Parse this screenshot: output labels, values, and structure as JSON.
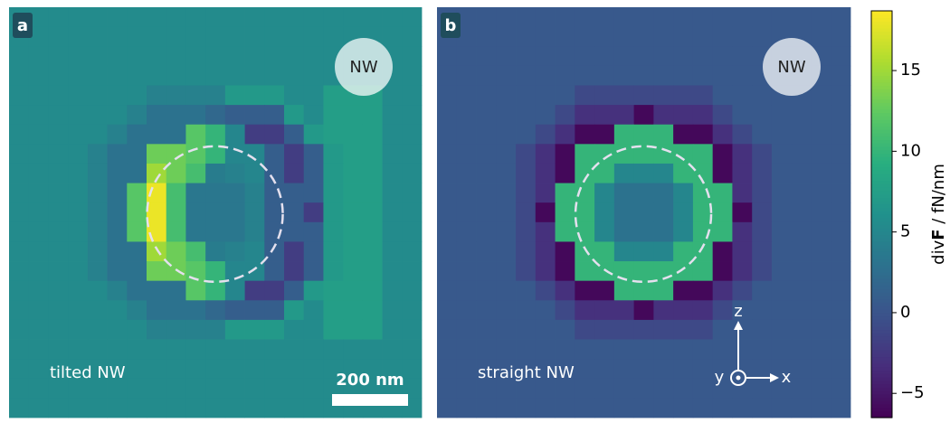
{
  "chart_data": [
    {
      "type": "heatmap",
      "panel_label": "a",
      "marker": "NW",
      "caption": "tilted NW",
      "scale_bar": "200 nm",
      "values": [
        [
          5.5,
          5.5,
          5.5,
          5.5,
          5.5,
          5.5,
          5.5,
          5.5,
          5.5,
          5.5,
          5.5,
          5.5,
          5.5,
          5.5,
          5.5,
          5.5,
          5.5,
          5.5,
          5.5,
          5.5,
          5.5
        ],
        [
          5.5,
          5.5,
          5.5,
          5.5,
          5.5,
          5.5,
          5.5,
          5.5,
          5.5,
          5.5,
          5.5,
          5.5,
          5.5,
          5.5,
          5.5,
          5.5,
          5.5,
          5.5,
          5.5,
          5.5,
          5.5
        ],
        [
          5.5,
          5.5,
          5.5,
          5.5,
          5.5,
          5.5,
          5.5,
          5.5,
          5.5,
          5.5,
          5.5,
          5.5,
          5.5,
          5.5,
          5.5,
          5.5,
          5.5,
          5.5,
          5.5,
          5.5,
          5.5
        ],
        [
          5.5,
          5.5,
          5.5,
          5.5,
          5.5,
          5.5,
          5.5,
          5.5,
          5.5,
          5.5,
          5.5,
          5.5,
          5.5,
          5.5,
          5.5,
          5.5,
          5.5,
          5.5,
          5.5,
          5.5,
          5.5
        ],
        [
          5.5,
          5.5,
          5.5,
          5.5,
          5.5,
          5.5,
          5.5,
          4.5,
          4.5,
          4.5,
          4.5,
          7,
          7,
          7,
          5.5,
          5.5,
          7.5,
          7.5,
          7.5,
          5.5,
          5.5
        ],
        [
          5.5,
          5.5,
          5.5,
          5.5,
          5.5,
          5.5,
          4.5,
          3,
          3,
          3,
          2,
          1,
          1,
          1,
          7,
          5.5,
          7.5,
          7.5,
          7.5,
          5.5,
          5.5
        ],
        [
          5.5,
          5.5,
          5.5,
          5.5,
          5.5,
          4.5,
          3,
          3,
          3,
          12,
          10,
          5,
          -2,
          -2,
          1,
          7,
          7.5,
          7.5,
          7.5,
          5.5,
          5.5
        ],
        [
          5.5,
          5.5,
          5.5,
          5.5,
          4.5,
          3,
          3,
          13,
          13,
          12,
          10,
          5,
          5,
          1,
          -2,
          1,
          7,
          7.5,
          7.5,
          5.5,
          5.5
        ],
        [
          5.5,
          5.5,
          5.5,
          5.5,
          4.5,
          3,
          3,
          15,
          13,
          11,
          4,
          4.5,
          5,
          1,
          -2,
          1,
          7,
          7.5,
          7.5,
          5.5,
          5.5
        ],
        [
          5.5,
          5.5,
          5.5,
          5.5,
          4.5,
          3,
          12,
          18,
          11,
          3.5,
          3.5,
          3.5,
          4.5,
          1,
          1,
          1,
          7,
          7.5,
          7.5,
          5.5,
          5.5
        ],
        [
          5.5,
          5.5,
          5.5,
          5.5,
          4.5,
          3,
          12,
          18,
          11,
          3.5,
          3.5,
          3.5,
          4.5,
          1,
          1,
          -2,
          7,
          7.5,
          7.5,
          5.5,
          5.5
        ],
        [
          5.5,
          5.5,
          5.5,
          5.5,
          4.5,
          3,
          12,
          18,
          11,
          3.5,
          3.5,
          3.5,
          4.5,
          1,
          1,
          1,
          7,
          7.5,
          7.5,
          5.5,
          5.5
        ],
        [
          5.5,
          5.5,
          5.5,
          5.5,
          4.5,
          3,
          3,
          15,
          13,
          11,
          4,
          4.5,
          5,
          1,
          -2,
          1,
          7,
          7.5,
          7.5,
          5.5,
          5.5
        ],
        [
          5.5,
          5.5,
          5.5,
          5.5,
          4.5,
          3,
          3,
          13,
          13,
          12,
          10,
          5,
          5,
          1,
          -2,
          1,
          7,
          7.5,
          7.5,
          5.5,
          5.5
        ],
        [
          5.5,
          5.5,
          5.5,
          5.5,
          5.5,
          4.5,
          3,
          3,
          3,
          12,
          10,
          5,
          -2,
          -2,
          1,
          7,
          7.5,
          7.5,
          7.5,
          5.5,
          5.5
        ],
        [
          5.5,
          5.5,
          5.5,
          5.5,
          5.5,
          5.5,
          4.5,
          3,
          3,
          3,
          2,
          1,
          1,
          1,
          7,
          5.5,
          7.5,
          7.5,
          7.5,
          5.5,
          5.5
        ],
        [
          5.5,
          5.5,
          5.5,
          5.5,
          5.5,
          5.5,
          5.5,
          4.5,
          4.5,
          4.5,
          4.5,
          7,
          7,
          7,
          5.5,
          5.5,
          7.5,
          7.5,
          7.5,
          5.5,
          5.5
        ],
        [
          5.5,
          5.5,
          5.5,
          5.5,
          5.5,
          5.5,
          5.5,
          5.5,
          5.5,
          5.5,
          5.5,
          5.5,
          5.5,
          5.5,
          5.5,
          5.5,
          5.5,
          5.5,
          5.5,
          5.5,
          5.5
        ],
        [
          5.5,
          5.5,
          5.5,
          5.5,
          5.5,
          5.5,
          5.5,
          5.5,
          5.5,
          5.5,
          5.5,
          5.5,
          5.5,
          5.5,
          5.5,
          5.5,
          5.5,
          5.5,
          5.5,
          5.5,
          5.5
        ],
        [
          5.5,
          5.5,
          5.5,
          5.5,
          5.5,
          5.5,
          5.5,
          5.5,
          5.5,
          5.5,
          5.5,
          5.5,
          5.5,
          5.5,
          5.5,
          5.5,
          5.5,
          5.5,
          5.5,
          5.5,
          5.5
        ],
        [
          5.5,
          5.5,
          5.5,
          5.5,
          5.5,
          5.5,
          5.5,
          5.5,
          5.5,
          5.5,
          5.5,
          5.5,
          5.5,
          5.5,
          5.5,
          5.5,
          5.5,
          5.5,
          5.5,
          5.5,
          5.5
        ]
      ]
    },
    {
      "type": "heatmap",
      "panel_label": "b",
      "marker": "NW",
      "caption": "straight NW",
      "axes_labels": [
        "z",
        "y",
        "x"
      ],
      "values": [
        [
          0.5,
          0.5,
          0.5,
          0.5,
          0.5,
          0.5,
          0.5,
          0.5,
          0.5,
          0.5,
          0.5,
          0.5,
          0.5,
          0.5,
          0.5,
          0.5,
          0.5,
          0.5,
          0.5,
          0.5,
          0.5
        ],
        [
          0.5,
          0.5,
          0.5,
          0.5,
          0.5,
          0.5,
          0.5,
          0.5,
          0.5,
          0.5,
          0.5,
          0.5,
          0.5,
          0.5,
          0.5,
          0.5,
          0.5,
          0.5,
          0.5,
          0.5,
          0.5
        ],
        [
          0.5,
          0.5,
          0.5,
          0.5,
          0.5,
          0.5,
          0.5,
          0.5,
          0.5,
          0.5,
          0.5,
          0.5,
          0.5,
          0.5,
          0.5,
          0.5,
          0.5,
          0.5,
          0.5,
          0.5,
          0.5
        ],
        [
          0.5,
          0.5,
          0.5,
          0.5,
          0.5,
          0.5,
          0.5,
          0.5,
          0.5,
          0.5,
          0.5,
          0.5,
          0.5,
          0.5,
          0.5,
          0.5,
          0.5,
          0.5,
          0.5,
          0.5,
          0.5
        ],
        [
          0.5,
          0.5,
          0.5,
          0.5,
          0.5,
          0.5,
          0.5,
          -1,
          -1,
          -1,
          -1,
          -1,
          -1,
          -1,
          0.5,
          0.5,
          0.5,
          0.5,
          0.5,
          0.5,
          0.5
        ],
        [
          0.5,
          0.5,
          0.5,
          0.5,
          0.5,
          0.5,
          -1,
          -3,
          -3,
          -3,
          -6,
          -3,
          -3,
          -3,
          -1,
          0.5,
          0.5,
          0.5,
          0.5,
          0.5,
          0.5
        ],
        [
          0.5,
          0.5,
          0.5,
          0.5,
          0.5,
          -1,
          -3,
          -6,
          -6,
          10,
          10,
          10,
          -6,
          -6,
          -3,
          -1,
          0.5,
          0.5,
          0.5,
          0.5,
          0.5
        ],
        [
          0.5,
          0.5,
          0.5,
          0.5,
          -1,
          -3,
          -6,
          10,
          10,
          10,
          10,
          10,
          10,
          10,
          -6,
          -3,
          -1,
          0.5,
          0.5,
          0.5,
          0.5
        ],
        [
          0.5,
          0.5,
          0.5,
          0.5,
          -1,
          -3,
          -6,
          10,
          10,
          5,
          5,
          5,
          10,
          10,
          -6,
          -3,
          -1,
          0.5,
          0.5,
          0.5,
          0.5
        ],
        [
          0.5,
          0.5,
          0.5,
          0.5,
          -1,
          -3,
          10,
          10,
          5,
          3,
          3,
          3,
          5,
          10,
          10,
          -3,
          -1,
          0.5,
          0.5,
          0.5,
          0.5
        ],
        [
          0.5,
          0.5,
          0.5,
          0.5,
          -1,
          -6,
          10,
          10,
          5,
          3,
          3,
          3,
          5,
          10,
          10,
          -6,
          -1,
          0.5,
          0.5,
          0.5,
          0.5
        ],
        [
          0.5,
          0.5,
          0.5,
          0.5,
          -1,
          -3,
          10,
          10,
          5,
          3,
          3,
          3,
          5,
          10,
          10,
          -3,
          -1,
          0.5,
          0.5,
          0.5,
          0.5
        ],
        [
          0.5,
          0.5,
          0.5,
          0.5,
          -1,
          -3,
          -6,
          10,
          10,
          5,
          5,
          5,
          10,
          10,
          -6,
          -3,
          -1,
          0.5,
          0.5,
          0.5,
          0.5
        ],
        [
          0.5,
          0.5,
          0.5,
          0.5,
          -1,
          -3,
          -6,
          10,
          10,
          10,
          10,
          10,
          10,
          10,
          -6,
          -3,
          -1,
          0.5,
          0.5,
          0.5,
          0.5
        ],
        [
          0.5,
          0.5,
          0.5,
          0.5,
          0.5,
          -1,
          -3,
          -6,
          -6,
          10,
          10,
          10,
          -6,
          -6,
          -3,
          -1,
          0.5,
          0.5,
          0.5,
          0.5,
          0.5
        ],
        [
          0.5,
          0.5,
          0.5,
          0.5,
          0.5,
          0.5,
          -1,
          -3,
          -3,
          -3,
          -6,
          -3,
          -3,
          -3,
          -1,
          0.5,
          0.5,
          0.5,
          0.5,
          0.5,
          0.5
        ],
        [
          0.5,
          0.5,
          0.5,
          0.5,
          0.5,
          0.5,
          0.5,
          -1,
          -1,
          -1,
          -1,
          -1,
          -1,
          -1,
          0.5,
          0.5,
          0.5,
          0.5,
          0.5,
          0.5,
          0.5
        ],
        [
          0.5,
          0.5,
          0.5,
          0.5,
          0.5,
          0.5,
          0.5,
          0.5,
          0.5,
          0.5,
          0.5,
          0.5,
          0.5,
          0.5,
          0.5,
          0.5,
          0.5,
          0.5,
          0.5,
          0.5,
          0.5
        ],
        [
          0.5,
          0.5,
          0.5,
          0.5,
          0.5,
          0.5,
          0.5,
          0.5,
          0.5,
          0.5,
          0.5,
          0.5,
          0.5,
          0.5,
          0.5,
          0.5,
          0.5,
          0.5,
          0.5,
          0.5,
          0.5
        ],
        [
          0.5,
          0.5,
          0.5,
          0.5,
          0.5,
          0.5,
          0.5,
          0.5,
          0.5,
          0.5,
          0.5,
          0.5,
          0.5,
          0.5,
          0.5,
          0.5,
          0.5,
          0.5,
          0.5,
          0.5,
          0.5
        ],
        [
          0.5,
          0.5,
          0.5,
          0.5,
          0.5,
          0.5,
          0.5,
          0.5,
          0.5,
          0.5,
          0.5,
          0.5,
          0.5,
          0.5,
          0.5,
          0.5,
          0.5,
          0.5,
          0.5,
          0.5,
          0.5
        ]
      ]
    },
    {
      "type": "colorbar",
      "colormap": "viridis",
      "zlim": [
        -6.5,
        18.7
      ],
      "zticks": [
        {
          "value": -5,
          "label": "−5"
        },
        0,
        5,
        10,
        15
      ],
      "label": [
        "div",
        "F",
        " / fN/nm"
      ]
    }
  ]
}
